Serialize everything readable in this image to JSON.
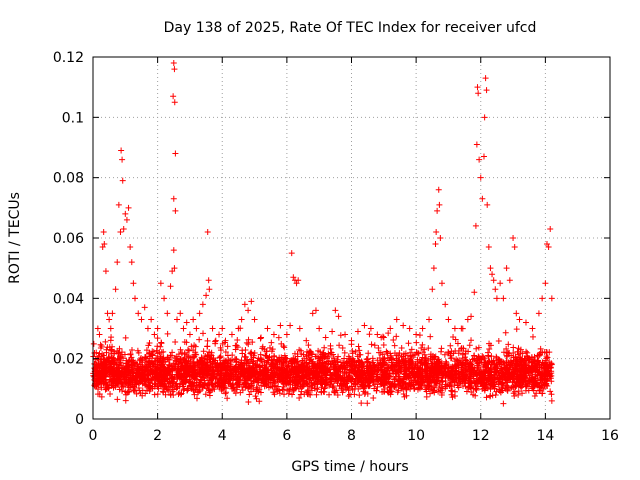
{
  "chart_data": {
    "type": "scatter",
    "title": "Day 138 of 2025, Rate Of TEC Index for receiver ufcd",
    "xlabel": "GPS time / hours",
    "ylabel": "ROTI / TECUs",
    "xlim": [
      0,
      16
    ],
    "ylim": [
      0,
      0.12
    ],
    "xticks": [
      0,
      2,
      4,
      6,
      8,
      10,
      12,
      14,
      16
    ],
    "xtick_labels": [
      "0",
      "2",
      "4",
      "6",
      "8",
      "10",
      "12",
      "14",
      "16"
    ],
    "yticks": [
      0,
      0.02,
      0.04,
      0.06,
      0.08,
      0.1,
      0.12
    ],
    "ytick_labels": [
      "0",
      "0.02",
      "0.04",
      "0.06",
      "0.08",
      "0.1",
      "0.12"
    ],
    "grid": true,
    "marker": "+",
    "color": "#ff0000",
    "series": [
      {
        "name": "ROTI",
        "points": [
          [
            0.05,
            0.014
          ],
          [
            0.1,
            0.022
          ],
          [
            0.15,
            0.03
          ],
          [
            0.2,
            0.028
          ],
          [
            0.3,
            0.057
          ],
          [
            0.33,
            0.062
          ],
          [
            0.35,
            0.058
          ],
          [
            0.4,
            0.049
          ],
          [
            0.45,
            0.035
          ],
          [
            0.5,
            0.033
          ],
          [
            0.55,
            0.03
          ],
          [
            0.6,
            0.035
          ],
          [
            0.7,
            0.043
          ],
          [
            0.75,
            0.052
          ],
          [
            0.8,
            0.071
          ],
          [
            0.85,
            0.062
          ],
          [
            0.87,
            0.089
          ],
          [
            0.9,
            0.086
          ],
          [
            0.92,
            0.079
          ],
          [
            0.95,
            0.063
          ],
          [
            1.0,
            0.068
          ],
          [
            1.05,
            0.066
          ],
          [
            1.1,
            0.07
          ],
          [
            1.15,
            0.057
          ],
          [
            1.2,
            0.052
          ],
          [
            1.25,
            0.045
          ],
          [
            1.3,
            0.04
          ],
          [
            1.4,
            0.035
          ],
          [
            1.5,
            0.033
          ],
          [
            1.6,
            0.037
          ],
          [
            1.7,
            0.03
          ],
          [
            1.8,
            0.033
          ],
          [
            1.9,
            0.028
          ],
          [
            2.0,
            0.03
          ],
          [
            2.1,
            0.045
          ],
          [
            2.2,
            0.04
          ],
          [
            2.3,
            0.035
          ],
          [
            2.4,
            0.044
          ],
          [
            2.45,
            0.049
          ],
          [
            2.48,
            0.107
          ],
          [
            2.5,
            0.118
          ],
          [
            2.52,
            0.116
          ],
          [
            2.53,
            0.105
          ],
          [
            2.55,
            0.088
          ],
          [
            2.5,
            0.073
          ],
          [
            2.55,
            0.069
          ],
          [
            2.5,
            0.056
          ],
          [
            2.52,
            0.05
          ],
          [
            2.6,
            0.033
          ],
          [
            2.7,
            0.035
          ],
          [
            2.8,
            0.03
          ],
          [
            2.9,
            0.032
          ],
          [
            3.0,
            0.028
          ],
          [
            3.1,
            0.033
          ],
          [
            3.2,
            0.03
          ],
          [
            3.3,
            0.035
          ],
          [
            3.4,
            0.038
          ],
          [
            3.5,
            0.041
          ],
          [
            3.55,
            0.062
          ],
          [
            3.58,
            0.046
          ],
          [
            3.6,
            0.043
          ],
          [
            3.7,
            0.03
          ],
          [
            3.8,
            0.026
          ],
          [
            3.9,
            0.028
          ],
          [
            4.0,
            0.03
          ],
          [
            4.1,
            0.026
          ],
          [
            4.3,
            0.028
          ],
          [
            4.5,
            0.03
          ],
          [
            4.6,
            0.033
          ],
          [
            4.7,
            0.038
          ],
          [
            4.8,
            0.036
          ],
          [
            4.9,
            0.039
          ],
          [
            5.0,
            0.033
          ],
          [
            5.2,
            0.027
          ],
          [
            5.4,
            0.03
          ],
          [
            5.6,
            0.028
          ],
          [
            5.8,
            0.031
          ],
          [
            6.0,
            0.028
          ],
          [
            6.1,
            0.031
          ],
          [
            6.15,
            0.055
          ],
          [
            6.2,
            0.047
          ],
          [
            6.25,
            0.046
          ],
          [
            6.3,
            0.045
          ],
          [
            6.35,
            0.046
          ],
          [
            6.4,
            0.03
          ],
          [
            6.6,
            0.026
          ],
          [
            6.8,
            0.035
          ],
          [
            6.9,
            0.036
          ],
          [
            7.0,
            0.03
          ],
          [
            7.2,
            0.027
          ],
          [
            7.4,
            0.029
          ],
          [
            7.5,
            0.036
          ],
          [
            7.6,
            0.034
          ],
          [
            7.8,
            0.028
          ],
          [
            8.0,
            0.026
          ],
          [
            8.2,
            0.029
          ],
          [
            8.4,
            0.031
          ],
          [
            8.6,
            0.03
          ],
          [
            8.8,
            0.028
          ],
          [
            9.0,
            0.027
          ],
          [
            9.2,
            0.03
          ],
          [
            9.4,
            0.033
          ],
          [
            9.6,
            0.031
          ],
          [
            9.8,
            0.03
          ],
          [
            10.0,
            0.028
          ],
          [
            10.2,
            0.03
          ],
          [
            10.4,
            0.033
          ],
          [
            10.5,
            0.043
          ],
          [
            10.55,
            0.05
          ],
          [
            10.6,
            0.058
          ],
          [
            10.62,
            0.062
          ],
          [
            10.65,
            0.069
          ],
          [
            10.7,
            0.076
          ],
          [
            10.72,
            0.071
          ],
          [
            10.75,
            0.06
          ],
          [
            10.8,
            0.045
          ],
          [
            10.9,
            0.038
          ],
          [
            11.0,
            0.033
          ],
          [
            11.2,
            0.03
          ],
          [
            11.4,
            0.03
          ],
          [
            11.6,
            0.033
          ],
          [
            11.7,
            0.034
          ],
          [
            11.8,
            0.042
          ],
          [
            11.85,
            0.064
          ],
          [
            11.88,
            0.091
          ],
          [
            11.9,
            0.11
          ],
          [
            11.92,
            0.108
          ],
          [
            11.95,
            0.086
          ],
          [
            12.0,
            0.08
          ],
          [
            12.05,
            0.073
          ],
          [
            12.1,
            0.087
          ],
          [
            12.12,
            0.1
          ],
          [
            12.15,
            0.113
          ],
          [
            12.18,
            0.109
          ],
          [
            12.2,
            0.071
          ],
          [
            12.25,
            0.057
          ],
          [
            12.3,
            0.05
          ],
          [
            12.35,
            0.048
          ],
          [
            12.4,
            0.046
          ],
          [
            12.45,
            0.043
          ],
          [
            12.5,
            0.04
          ],
          [
            12.6,
            0.045
          ],
          [
            12.7,
            0.04
          ],
          [
            12.8,
            0.05
          ],
          [
            12.9,
            0.046
          ],
          [
            13.0,
            0.06
          ],
          [
            13.05,
            0.057
          ],
          [
            13.1,
            0.035
          ],
          [
            13.2,
            0.033
          ],
          [
            13.4,
            0.032
          ],
          [
            13.6,
            0.03
          ],
          [
            13.8,
            0.035
          ],
          [
            13.9,
            0.04
          ],
          [
            14.0,
            0.045
          ],
          [
            14.05,
            0.058
          ],
          [
            14.1,
            0.057
          ],
          [
            14.15,
            0.063
          ],
          [
            14.2,
            0.04
          ],
          [
            14.2,
            0.006
          ]
        ],
        "dense_band": [
          {
            "x_range": [
              0.0,
              14.2
            ],
            "y_range": [
              0.006,
              0.024
            ],
            "count": 3400
          },
          {
            "x_range": [
              0.0,
              14.2
            ],
            "y_range": [
              0.003,
              0.032
            ],
            "count": 900
          }
        ]
      }
    ]
  }
}
